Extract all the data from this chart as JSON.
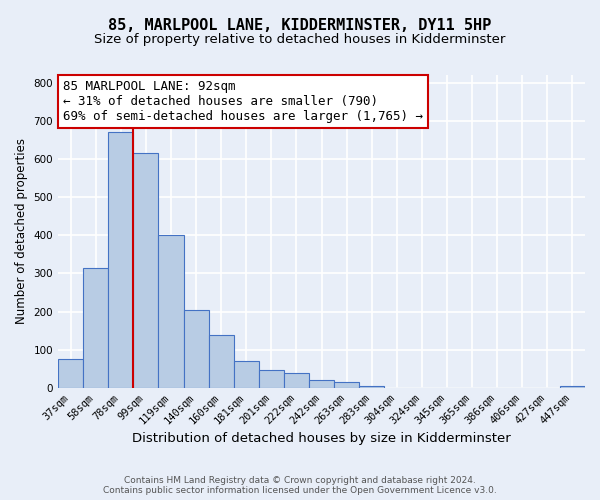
{
  "title": "85, MARLPOOL LANE, KIDDERMINSTER, DY11 5HP",
  "subtitle": "Size of property relative to detached houses in Kidderminster",
  "xlabel": "Distribution of detached houses by size in Kidderminster",
  "ylabel": "Number of detached properties",
  "bar_labels": [
    "37sqm",
    "58sqm",
    "78sqm",
    "99sqm",
    "119sqm",
    "140sqm",
    "160sqm",
    "181sqm",
    "201sqm",
    "222sqm",
    "242sqm",
    "263sqm",
    "283sqm",
    "304sqm",
    "324sqm",
    "345sqm",
    "365sqm",
    "386sqm",
    "406sqm",
    "427sqm",
    "447sqm"
  ],
  "bar_values": [
    75,
    315,
    670,
    615,
    400,
    205,
    138,
    70,
    48,
    38,
    20,
    15,
    5,
    0,
    0,
    0,
    0,
    0,
    0,
    0,
    5
  ],
  "bar_color": "#b8cce4",
  "bar_edge_color": "#4472c4",
  "vline_color": "#cc0000",
  "annotation_line1": "85 MARLPOOL LANE: 92sqm",
  "annotation_line2": "← 31% of detached houses are smaller (790)",
  "annotation_line3": "69% of semi-detached houses are larger (1,765) →",
  "annotation_box_color": "#ffffff",
  "annotation_box_edge": "#cc0000",
  "ylim": [
    0,
    820
  ],
  "yticks": [
    0,
    100,
    200,
    300,
    400,
    500,
    600,
    700,
    800
  ],
  "footnote": "Contains HM Land Registry data © Crown copyright and database right 2024.\nContains public sector information licensed under the Open Government Licence v3.0.",
  "bg_color": "#e8eef8",
  "plot_bg_color": "#e8eef8",
  "title_fontsize": 11,
  "subtitle_fontsize": 9.5,
  "xlabel_fontsize": 9.5,
  "ylabel_fontsize": 8.5,
  "tick_fontsize": 7.5,
  "annotation_fontsize": 9,
  "footnote_fontsize": 6.5
}
